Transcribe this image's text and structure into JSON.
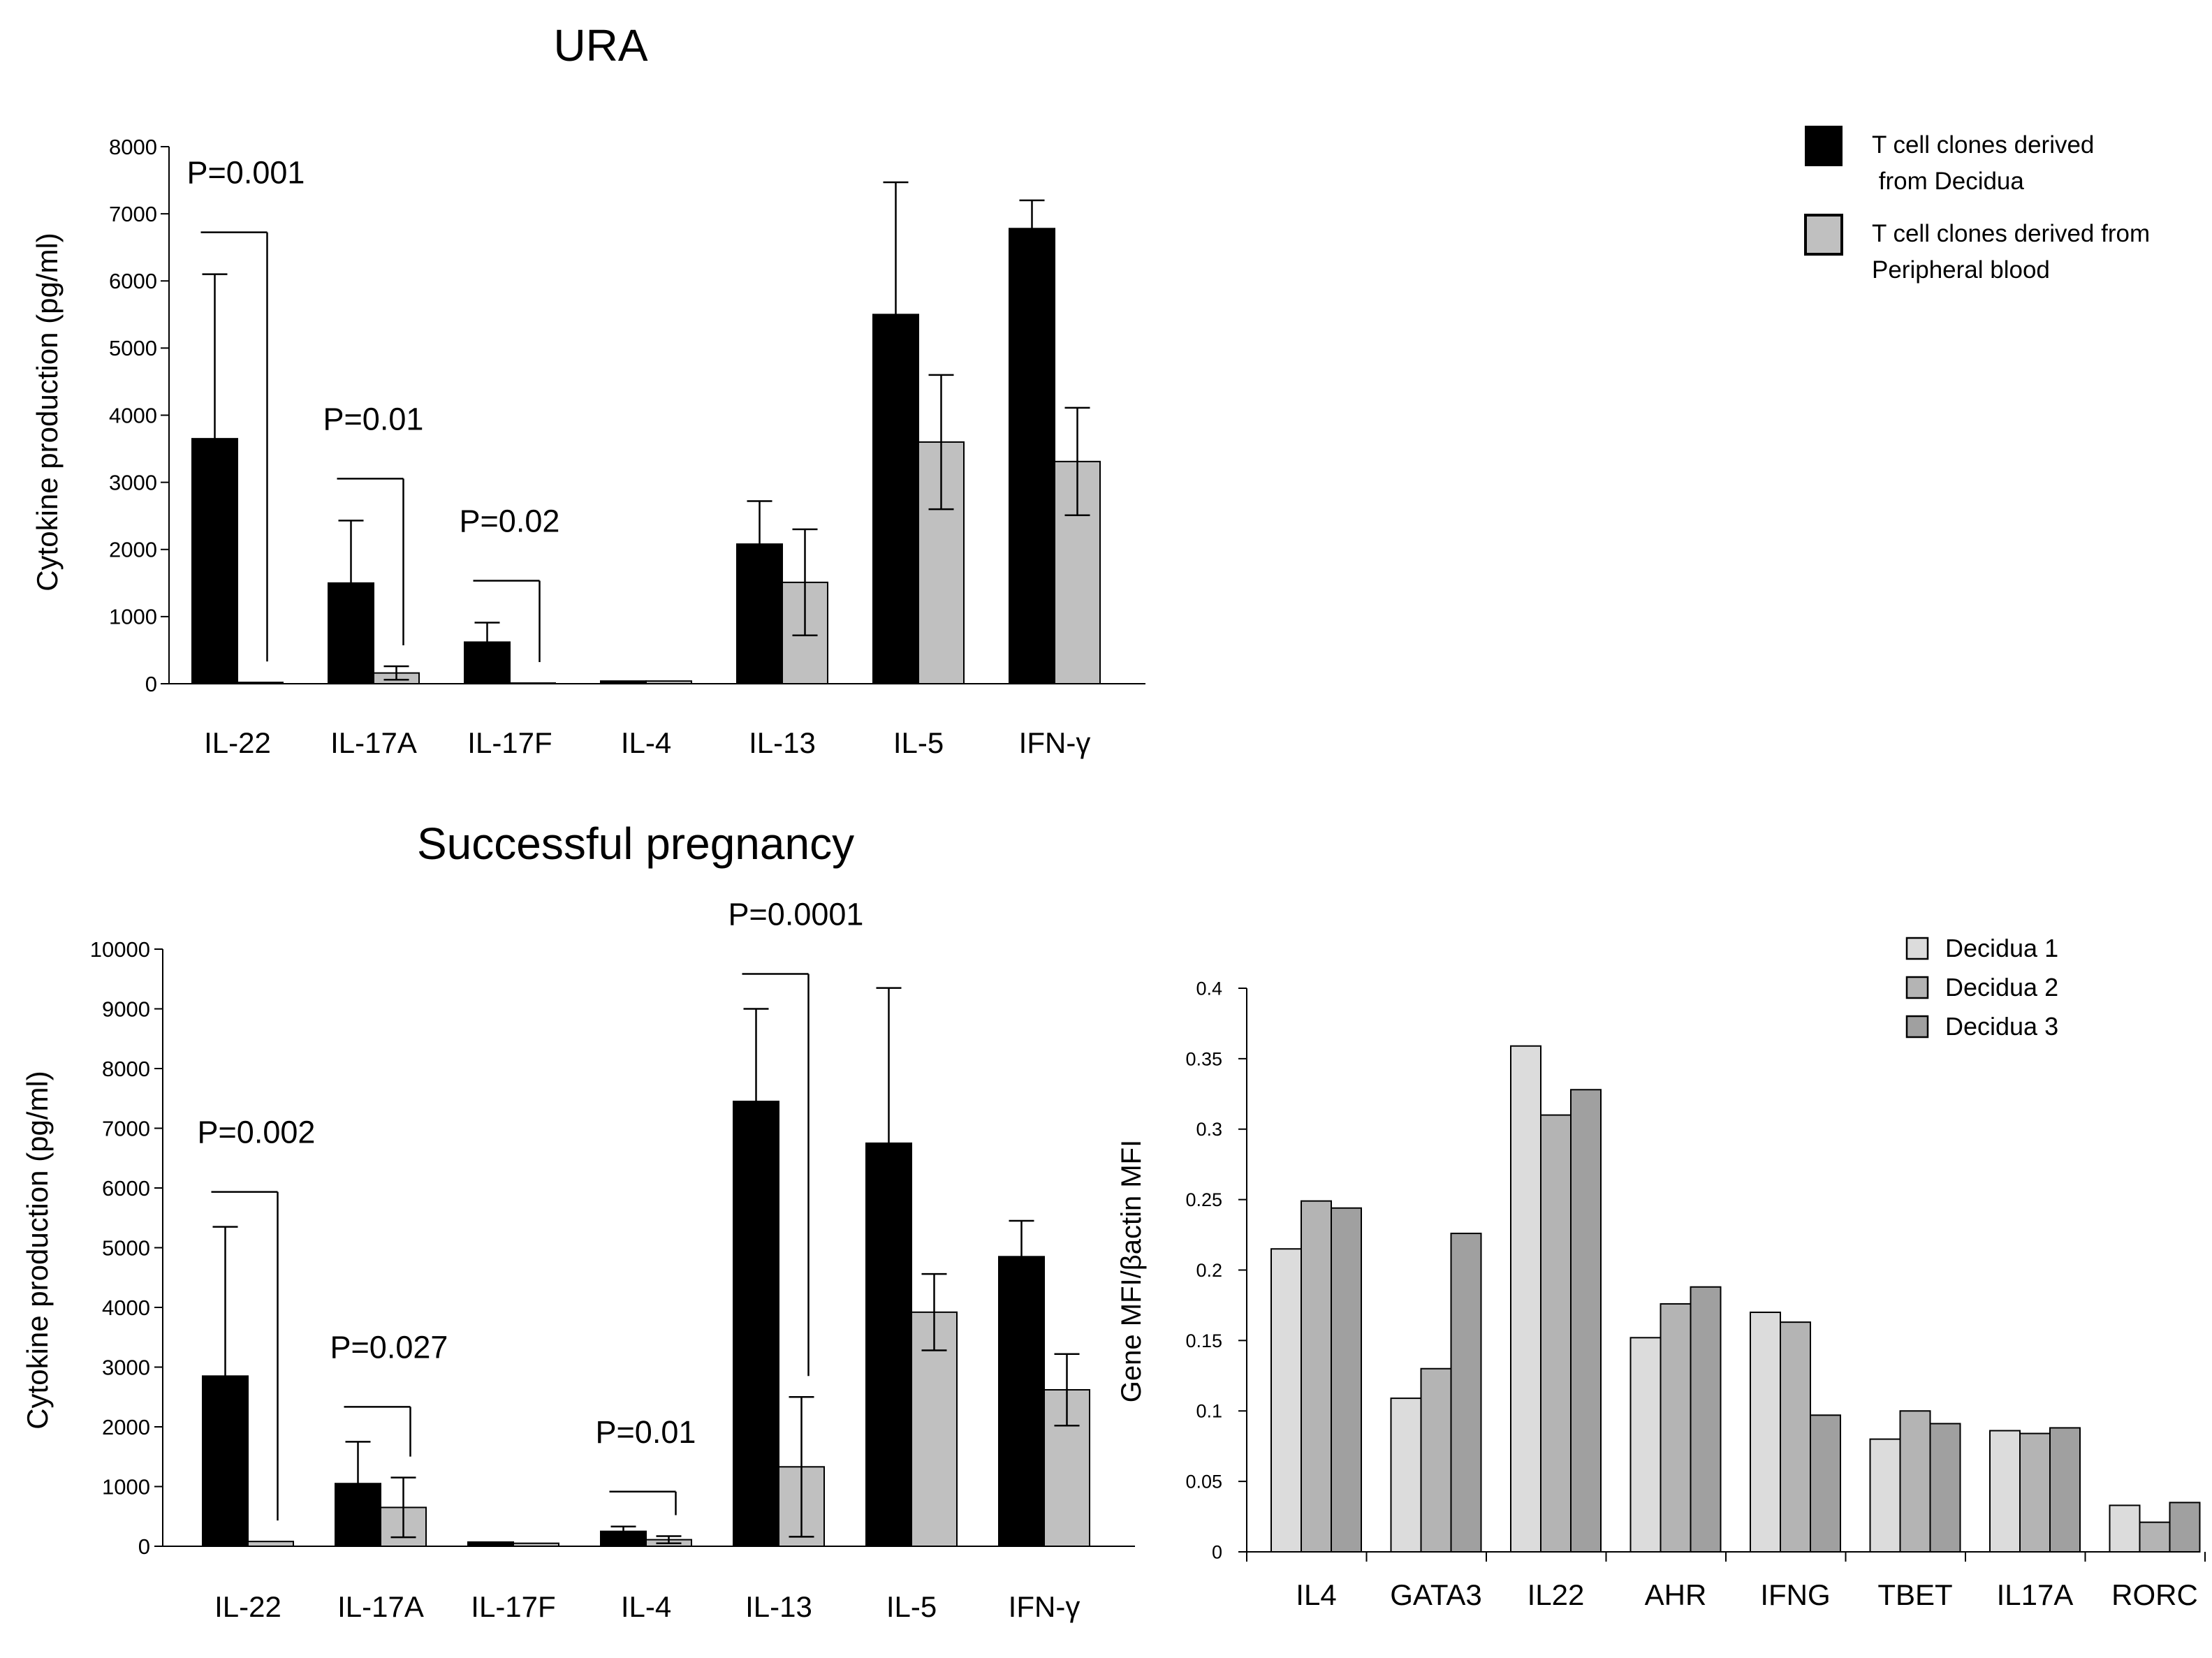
{
  "chart_data": [
    {
      "id": "ura",
      "type": "bar",
      "title": "URA",
      "ylabel": "Cytokine production (pg/ml)",
      "xlabel": "",
      "ylim": [
        0,
        8000
      ],
      "yticks": [
        "0",
        "1000",
        "2000",
        "3000",
        "4000",
        "5000",
        "6000",
        "7000",
        "8000"
      ],
      "categories": [
        "IL-22",
        "IL-17A",
        "IL-17F",
        "IL-4",
        "IL-13",
        "IL-5",
        "IFN-γ"
      ],
      "series": [
        {
          "name": "T cell clones derived from Decidua",
          "color": "#000000",
          "values": [
            3650,
            1500,
            620,
            40,
            2080,
            5500,
            6780
          ],
          "errors": [
            2450,
            930,
            290,
            null,
            640,
            1970,
            420
          ]
        },
        {
          "name": "T cell clones derived from Peripheral blood",
          "color": "#c0c0c0",
          "values": [
            20,
            160,
            10,
            40,
            1510,
            3600,
            3310
          ],
          "errors": [
            null,
            100,
            null,
            null,
            790,
            1000,
            800
          ]
        }
      ],
      "annotations": [
        {
          "text": "P=0.001",
          "category": 0
        },
        {
          "text": "P=0.01",
          "category": 1
        },
        {
          "text": "P=0.02",
          "category": 2
        }
      ]
    },
    {
      "id": "successful",
      "type": "bar",
      "title": "Successful pregnancy",
      "ylabel": "Cytokine production (pg/ml)",
      "xlabel": "",
      "ylim": [
        0,
        10000
      ],
      "yticks": [
        "0",
        "1000",
        "2000",
        "3000",
        "4000",
        "5000",
        "6000",
        "7000",
        "8000",
        "9000",
        "10000"
      ],
      "categories": [
        "IL-22",
        "IL-17A",
        "IL-17F",
        "IL-4",
        "IL-13",
        "IL-5",
        "IFN-γ"
      ],
      "series": [
        {
          "name": "T cell clones derived from Decidua",
          "color": "#000000",
          "values": [
            2850,
            1050,
            70,
            250,
            7450,
            6750,
            4850
          ],
          "errors": [
            2500,
            700,
            null,
            80,
            1550,
            2600,
            600
          ]
        },
        {
          "name": "T cell clones derived from Peripheral blood",
          "color": "#c0c0c0",
          "values": [
            80,
            650,
            50,
            110,
            1330,
            3920,
            2620
          ],
          "errors": [
            null,
            500,
            null,
            60,
            1170,
            640,
            600
          ]
        }
      ],
      "annotations": [
        {
          "text": "P=0.002",
          "category": 0
        },
        {
          "text": "P=0.027",
          "category": 1
        },
        {
          "text": "P=0.01",
          "category": 3
        },
        {
          "text": "P=0.0001",
          "category": 4
        }
      ]
    },
    {
      "id": "gene",
      "type": "bar",
      "title": "",
      "ylabel": "Gene MFI/βactin MFI",
      "xlabel": "",
      "ylim": [
        0,
        0.4
      ],
      "yticks": [
        "0",
        "0.05",
        "0.1",
        "0.15",
        "0.2",
        "0.25",
        "0.3",
        "0.35",
        "0.4"
      ],
      "categories": [
        "IL4",
        "GATA3",
        "IL22",
        "AHR",
        "IFNG",
        "TBET",
        "IL17A",
        "RORC"
      ],
      "series": [
        {
          "name": "Decidua 1",
          "color": "#dcdcdc",
          "values": [
            0.215,
            0.109,
            0.359,
            0.152,
            0.17,
            0.08,
            0.086,
            0.033
          ]
        },
        {
          "name": "Decidua 2",
          "color": "#b4b4b4",
          "values": [
            0.249,
            0.13,
            0.31,
            0.176,
            0.163,
            0.1,
            0.084,
            0.021
          ]
        },
        {
          "name": "Decidua 3",
          "color": "#a0a0a0",
          "values": [
            0.244,
            0.226,
            0.328,
            0.188,
            0.097,
            0.091,
            0.088,
            0.035
          ]
        }
      ]
    }
  ],
  "legend_top": {
    "items": [
      {
        "line1": "T cell clones derived",
        "line2": " from Decidua"
      },
      {
        "line1": "T cell clones derived from",
        "line2": "Peripheral blood"
      }
    ]
  }
}
